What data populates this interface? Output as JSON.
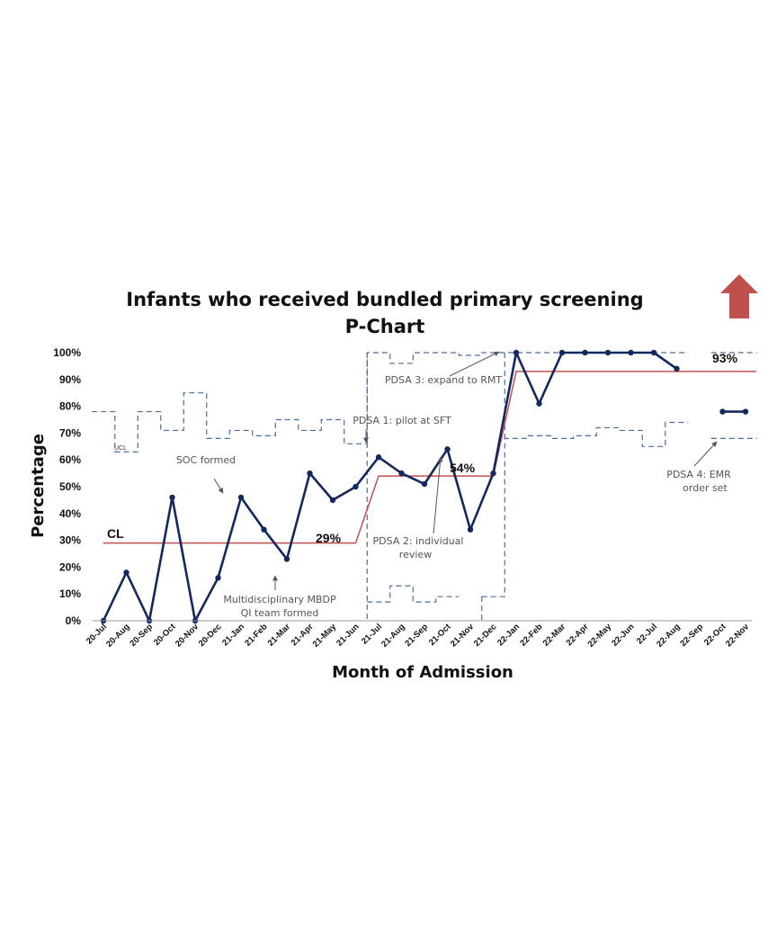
{
  "chart_data": {
    "type": "line",
    "title": "Infants who received bundled primary screening",
    "subtitle": "P-Chart",
    "xlabel": "Month of Admission",
    "ylabel": "Percentage",
    "ylim": [
      0,
      100
    ],
    "yticks": [
      "0%",
      "10%",
      "20%",
      "30%",
      "40%",
      "50%",
      "60%",
      "70%",
      "80%",
      "90%",
      "100%"
    ],
    "categories": [
      "20-Jul",
      "20-Aug",
      "20-Sep",
      "20-Oct",
      "20-Nov",
      "20-Dec",
      "21-Jan",
      "21-Feb",
      "21-Mar",
      "21-Apr",
      "21-May",
      "21-Jun",
      "21-Jul",
      "21-Aug",
      "21-Sep",
      "21-Oct",
      "21-Nov",
      "21-Dec",
      "22-Jan",
      "22-Feb",
      "22-Mar",
      "22-Apr",
      "22-May",
      "22-Jun",
      "22-Jul",
      "22-Aug",
      "22-Sep",
      "22-Oct",
      "22-Nov"
    ],
    "series": [
      {
        "values": [
          0,
          18,
          0,
          46,
          0,
          16,
          46,
          34,
          23,
          55,
          45,
          50,
          61,
          55,
          51,
          64,
          34,
          55,
          100,
          81,
          100,
          100,
          100,
          100,
          100,
          94,
          null,
          78,
          78
        ]
      }
    ],
    "center_line": {
      "values": [
        29,
        29,
        29,
        29,
        29,
        29,
        29,
        29,
        29,
        29,
        29,
        29,
        54,
        54,
        54,
        54,
        54,
        54,
        93,
        93,
        93,
        93,
        93,
        93,
        93,
        93,
        93,
        93,
        93
      ],
      "label": "CL",
      "phase_labels": [
        "29%",
        "54%",
        "93%"
      ]
    },
    "ucl": {
      "label": "UCL",
      "values": [
        78,
        63,
        78,
        71,
        85,
        68,
        71,
        69,
        75,
        71,
        75,
        66,
        100,
        96,
        100,
        100,
        99,
        100,
        100,
        100,
        100,
        100,
        100,
        100,
        100,
        100,
        null,
        100,
        100
      ]
    },
    "lcl": {
      "values": [
        null,
        null,
        null,
        null,
        null,
        null,
        null,
        null,
        null,
        null,
        null,
        null,
        7,
        13,
        7,
        9,
        null,
        9,
        68,
        69,
        68,
        69,
        72,
        71,
        65,
        74,
        null,
        68,
        68
      ]
    },
    "annotations": [
      {
        "text": "UCL"
      },
      {
        "text": "CL"
      },
      {
        "text": "SOC formed"
      },
      {
        "text": "Multidisciplinary MBDP QI team formed"
      },
      {
        "text": "PDSA 1: pilot at SFT"
      },
      {
        "text": "PDSA 2: individual review"
      },
      {
        "text": "PDSA 3: expand to RMT"
      },
      {
        "text": "PDSA 4: EMR order set"
      }
    ],
    "colors": {
      "data_line": "#13285e",
      "center_line": "#c0504d",
      "control_limits": "#4a6d9a",
      "arrow": "#c0504d"
    }
  },
  "text": {
    "title": "Infants who received bundled primary screening",
    "subtitle": "P-Chart",
    "xlabel": "Month of Admission",
    "ylabel": "Percentage",
    "ucl_label": "UCL",
    "cl_label": "CL",
    "cl_phase1": "29%",
    "cl_phase2": "54%",
    "cl_phase3": "93%",
    "soc": "SOC formed",
    "multi_line1": "Multidisciplinary MBDP",
    "multi_line2": "QI team formed",
    "pdsa1": "PDSA 1: pilot at SFT",
    "pdsa2_line1": "PDSA 2: individual",
    "pdsa2_line2": "review",
    "pdsa3": "PDSA 3: expand to RMT",
    "pdsa4_line1": "PDSA 4: EMR",
    "pdsa4_line2": "order set"
  },
  "arrow_icon": "up-arrow-icon"
}
